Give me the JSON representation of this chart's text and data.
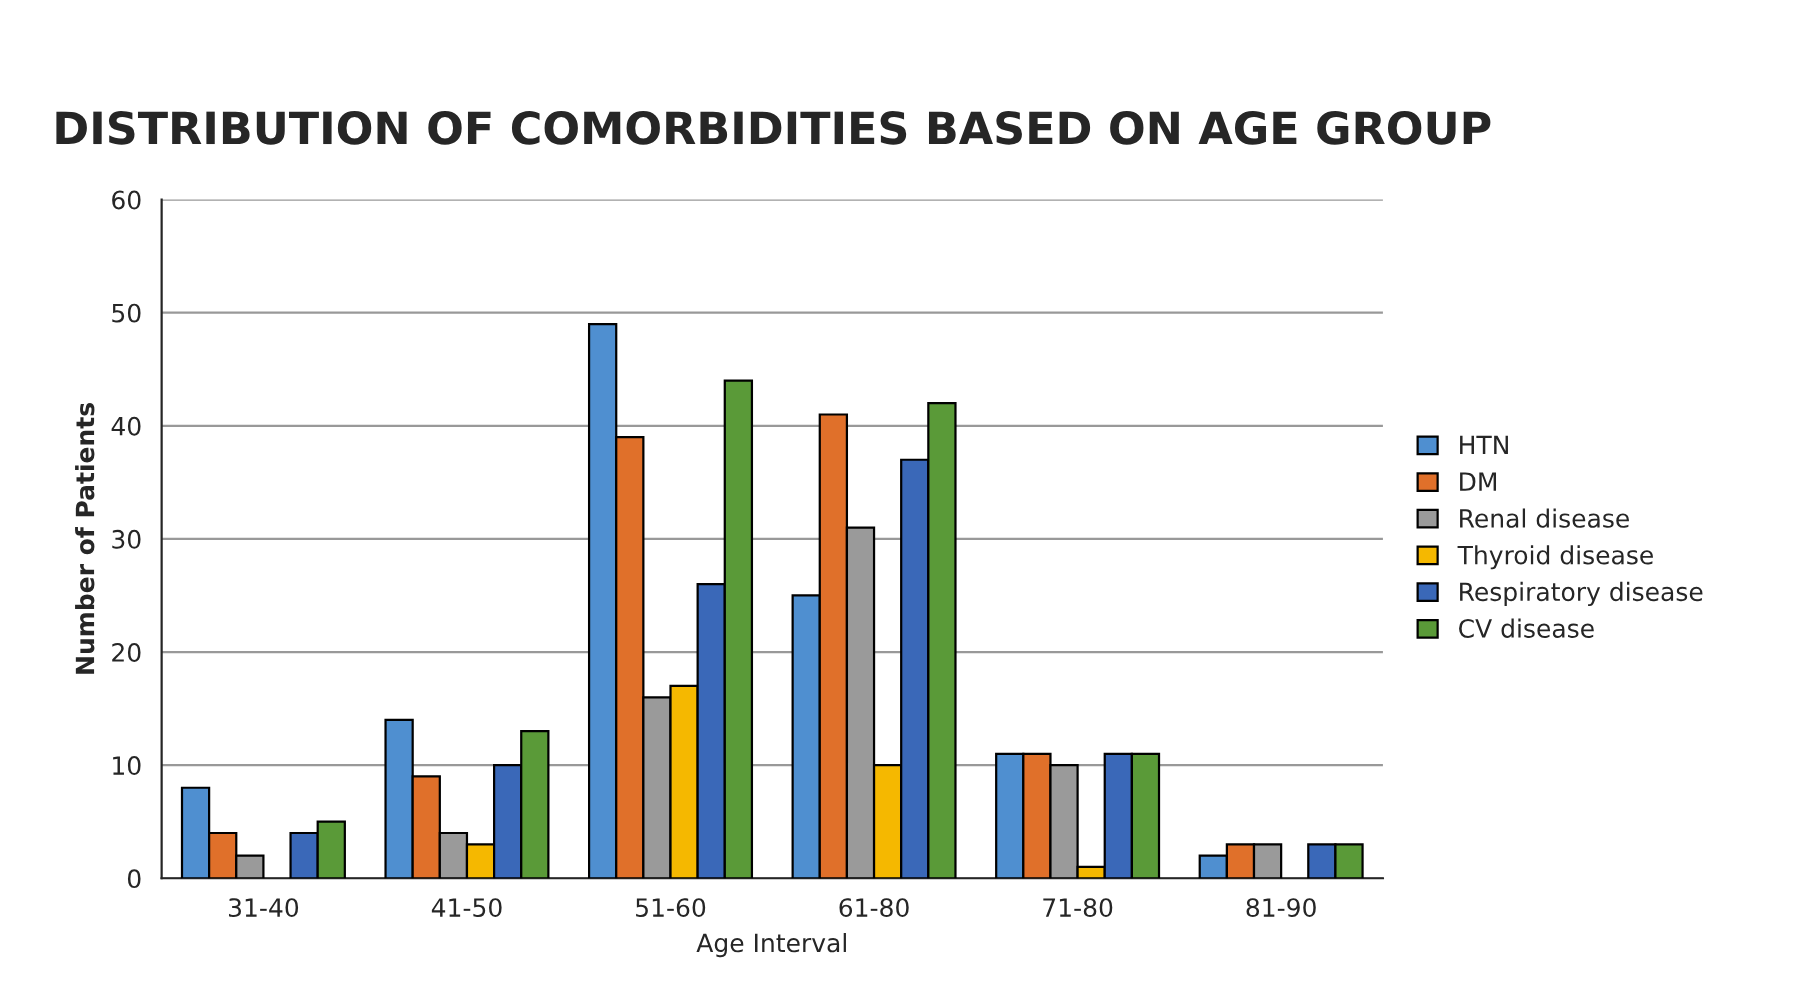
{
  "chart_data": {
    "type": "bar",
    "title": "DISTRIBUTION OF COMORBIDITIES BASED ON AGE GROUP",
    "xlabel": "Age Interval",
    "ylabel": "Number of Patients",
    "categories": [
      "31-40",
      "41-50",
      "51-60",
      "61-80",
      "71-80",
      "81-90"
    ],
    "series": [
      {
        "name": "HTN",
        "color": "#4f8fd0",
        "values": [
          8,
          14,
          49,
          25,
          11,
          2
        ]
      },
      {
        "name": "DM",
        "color": "#e0702a",
        "values": [
          4,
          9,
          39,
          41,
          11,
          3
        ]
      },
      {
        "name": "Renal disease",
        "color": "#9a9a9a",
        "values": [
          2,
          4,
          16,
          31,
          10,
          3
        ]
      },
      {
        "name": "Thyroid disease",
        "color": "#f5b800",
        "values": [
          null,
          3,
          17,
          10,
          1,
          null
        ]
      },
      {
        "name": "Respiratory disease",
        "color": "#3a68b8",
        "values": [
          4,
          10,
          26,
          37,
          11,
          3
        ]
      },
      {
        "name": "CV disease",
        "color": "#5a9a38",
        "values": [
          5,
          13,
          44,
          42,
          11,
          3
        ]
      }
    ],
    "ylim": [
      0,
      60
    ],
    "yticks": [
      0,
      10,
      20,
      30,
      40,
      50,
      60
    ],
    "grid": "y",
    "legend": "right"
  }
}
